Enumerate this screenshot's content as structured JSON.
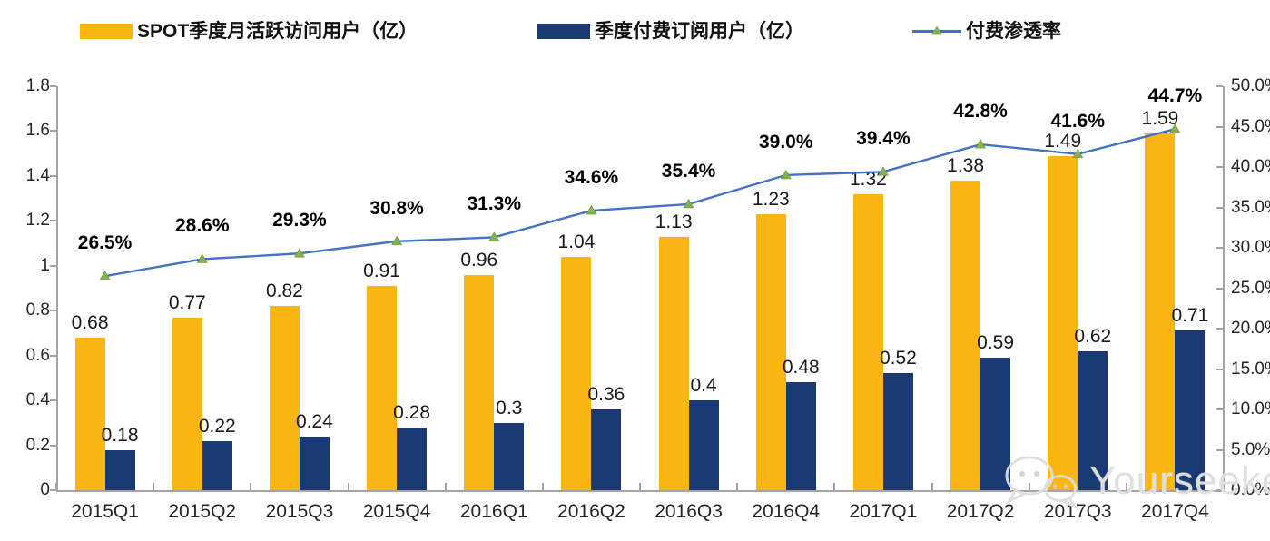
{
  "legend": {
    "items": [
      {
        "label": "SPOT季度月活跃访问用户（亿）",
        "swatch": "bar",
        "color": "#FBB612"
      },
      {
        "label": "季度付费订阅用户（亿）",
        "swatch": "bar",
        "color": "#1B3A74"
      },
      {
        "label": "付费渗透率",
        "swatch": "line",
        "color": "#4472C4",
        "marker_color": "#84B04F"
      }
    ]
  },
  "chart_data": {
    "type": "bar",
    "subtype": "clustered-bars-with-line",
    "title": "",
    "categories": [
      "2015Q1",
      "2015Q2",
      "2015Q3",
      "2015Q4",
      "2016Q1",
      "2016Q2",
      "2016Q3",
      "2016Q4",
      "2017Q1",
      "2017Q2",
      "2017Q3",
      "2017Q4"
    ],
    "series": [
      {
        "name": "SPOT季度月活跃访问用户（亿）",
        "type": "bar",
        "axis": "left",
        "color": "#FBB612",
        "values": [
          0.68,
          0.77,
          0.82,
          0.91,
          0.96,
          1.04,
          1.13,
          1.23,
          1.32,
          1.38,
          1.49,
          1.59
        ],
        "labels": [
          "0.68",
          "0.77",
          "0.82",
          "0.91",
          "0.96",
          "1.04",
          "1.13",
          "1.23",
          "1.32",
          "1.38",
          "1.49",
          "1.59"
        ]
      },
      {
        "name": "季度付费订阅用户（亿）",
        "type": "bar",
        "axis": "left",
        "color": "#1B3A74",
        "values": [
          0.18,
          0.22,
          0.24,
          0.28,
          0.3,
          0.36,
          0.4,
          0.48,
          0.52,
          0.59,
          0.62,
          0.71
        ],
        "labels": [
          "0.18",
          "0.22",
          "0.24",
          "0.28",
          "0.3",
          "0.36",
          "0.4",
          "0.48",
          "0.52",
          "0.59",
          "0.62",
          "0.71"
        ]
      },
      {
        "name": "付费渗透率",
        "type": "line",
        "axis": "right",
        "color": "#4472C4",
        "marker": "triangle",
        "marker_color": "#84B04F",
        "values": [
          26.5,
          28.6,
          29.3,
          30.8,
          31.3,
          34.6,
          35.4,
          39.0,
          39.4,
          42.8,
          41.6,
          44.7
        ],
        "labels": [
          "26.5%",
          "28.6%",
          "29.3%",
          "30.8%",
          "31.3%",
          "34.6%",
          "35.4%",
          "39.0%",
          "39.4%",
          "42.8%",
          "41.6%",
          "44.7%"
        ]
      }
    ],
    "left_axis": {
      "min": 0,
      "max": 1.8,
      "step": 0.2,
      "ticks": [
        "1.8",
        "1.6",
        "1.4",
        "1.2",
        "1",
        "0.8",
        "0.6",
        "0.4",
        "0.2",
        "0"
      ]
    },
    "right_axis": {
      "min": 0,
      "max": 50,
      "step": 5,
      "ticks": [
        "50.0%",
        "45.0%",
        "40.0%",
        "35.0%",
        "30.0%",
        "25.0%",
        "20.0%",
        "15.0%",
        "10.0%",
        "5.0%",
        "0.0%"
      ]
    },
    "grid": false,
    "legend_position": "top"
  },
  "watermark": {
    "text": "Yourseeker",
    "icon": "wechat-icon"
  }
}
